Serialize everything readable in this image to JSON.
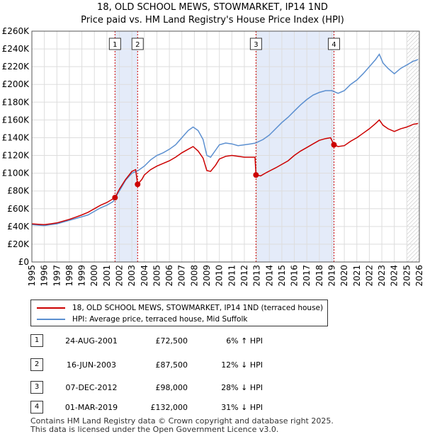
{
  "title_line1": "18, OLD SCHOOL MEWS, STOWMARKET, IP14 1ND",
  "title_line2": "Price paid vs. HM Land Registry's House Price Index (HPI)",
  "chart_data": {
    "type": "line",
    "x_ticks": [
      "1995",
      "1996",
      "1997",
      "1998",
      "1999",
      "2000",
      "2001",
      "2002",
      "2003",
      "2004",
      "2005",
      "2006",
      "2007",
      "2008",
      "2009",
      "2010",
      "2011",
      "2012",
      "2013",
      "2014",
      "2015",
      "2016",
      "2017",
      "2018",
      "2019",
      "2020",
      "2021",
      "2022",
      "2023",
      "2024",
      "2025",
      "2026"
    ],
    "y_ticks": [
      "£0",
      "£20K",
      "£40K",
      "£60K",
      "£80K",
      "£100K",
      "£120K",
      "£140K",
      "£160K",
      "£180K",
      "£200K",
      "£220K",
      "£240K",
      "£260K"
    ],
    "xlim": [
      1995,
      2026
    ],
    "ylim": [
      0,
      260000
    ],
    "highlight_ranges": [
      [
        2001.65,
        2003.46
      ],
      [
        2012.93,
        2019.17
      ]
    ],
    "hatch_from": 2025.0,
    "series": [
      {
        "name": "HPI: Average price, terraced house, Mid Suffolk",
        "color": "#5b8fd0",
        "points": [
          [
            1995.0,
            42000
          ],
          [
            1995.5,
            41500
          ],
          [
            1996.0,
            41000
          ],
          [
            1996.5,
            42000
          ],
          [
            1997.0,
            43000
          ],
          [
            1997.5,
            45000
          ],
          [
            1998.0,
            47000
          ],
          [
            1998.5,
            49000
          ],
          [
            1999.0,
            51000
          ],
          [
            1999.5,
            53000
          ],
          [
            2000.0,
            57000
          ],
          [
            2000.5,
            61000
          ],
          [
            2001.0,
            64000
          ],
          [
            2001.5,
            68000
          ],
          [
            2002.0,
            80000
          ],
          [
            2002.5,
            92000
          ],
          [
            2003.0,
            100000
          ],
          [
            2003.5,
            103000
          ],
          [
            2004.0,
            108000
          ],
          [
            2004.5,
            115000
          ],
          [
            2005.0,
            120000
          ],
          [
            2005.5,
            123000
          ],
          [
            2006.0,
            127000
          ],
          [
            2006.5,
            132000
          ],
          [
            2007.0,
            140000
          ],
          [
            2007.5,
            148000
          ],
          [
            2007.9,
            152000
          ],
          [
            2008.3,
            148000
          ],
          [
            2008.7,
            138000
          ],
          [
            2009.0,
            120000
          ],
          [
            2009.3,
            118000
          ],
          [
            2009.7,
            126000
          ],
          [
            2010.0,
            132000
          ],
          [
            2010.5,
            134000
          ],
          [
            2011.0,
            133000
          ],
          [
            2011.5,
            131000
          ],
          [
            2012.0,
            132000
          ],
          [
            2012.5,
            133000
          ],
          [
            2012.9,
            134000
          ],
          [
            2013.5,
            138000
          ],
          [
            2014.0,
            143000
          ],
          [
            2014.5,
            150000
          ],
          [
            2015.0,
            157000
          ],
          [
            2015.5,
            163000
          ],
          [
            2016.0,
            170000
          ],
          [
            2016.5,
            177000
          ],
          [
            2017.0,
            183000
          ],
          [
            2017.5,
            188000
          ],
          [
            2018.0,
            191000
          ],
          [
            2018.5,
            193000
          ],
          [
            2019.0,
            193000
          ],
          [
            2019.5,
            190000
          ],
          [
            2020.0,
            193000
          ],
          [
            2020.5,
            200000
          ],
          [
            2021.0,
            205000
          ],
          [
            2021.5,
            212000
          ],
          [
            2022.0,
            220000
          ],
          [
            2022.5,
            228000
          ],
          [
            2022.8,
            234000
          ],
          [
            2023.1,
            224000
          ],
          [
            2023.5,
            218000
          ],
          [
            2024.0,
            212000
          ],
          [
            2024.5,
            218000
          ],
          [
            2025.0,
            222000
          ],
          [
            2025.5,
            226000
          ],
          [
            2025.9,
            228000
          ]
        ]
      },
      {
        "name": "18, OLD SCHOOL MEWS, STOWMARKET, IP14 1ND (terraced house)",
        "color": "#cc0000",
        "points": [
          [
            1995.0,
            43000
          ],
          [
            1995.5,
            42500
          ],
          [
            1996.0,
            42000
          ],
          [
            1996.5,
            43000
          ],
          [
            1997.0,
            44000
          ],
          [
            1997.5,
            46000
          ],
          [
            1998.0,
            48000
          ],
          [
            1998.5,
            50500
          ],
          [
            1999.0,
            53000
          ],
          [
            1999.5,
            56000
          ],
          [
            2000.0,
            60000
          ],
          [
            2000.5,
            64000
          ],
          [
            2001.0,
            67000
          ],
          [
            2001.65,
            72500
          ],
          [
            2002.0,
            82000
          ],
          [
            2002.5,
            93000
          ],
          [
            2003.0,
            102000
          ],
          [
            2003.3,
            104000
          ],
          [
            2003.46,
            87500
          ],
          [
            2003.8,
            93000
          ],
          [
            2004.0,
            98000
          ],
          [
            2004.5,
            104000
          ],
          [
            2005.0,
            108000
          ],
          [
            2005.5,
            111000
          ],
          [
            2006.0,
            114000
          ],
          [
            2006.5,
            118000
          ],
          [
            2007.0,
            123000
          ],
          [
            2007.5,
            127000
          ],
          [
            2007.9,
            130000
          ],
          [
            2008.3,
            125000
          ],
          [
            2008.7,
            117000
          ],
          [
            2009.0,
            103000
          ],
          [
            2009.3,
            102000
          ],
          [
            2009.7,
            109000
          ],
          [
            2010.0,
            116000
          ],
          [
            2010.5,
            119000
          ],
          [
            2011.0,
            120000
          ],
          [
            2011.5,
            119000
          ],
          [
            2012.0,
            118000
          ],
          [
            2012.5,
            118000
          ],
          [
            2012.85,
            118000
          ],
          [
            2012.93,
            98000
          ],
          [
            2013.3,
            97000
          ],
          [
            2013.8,
            101000
          ],
          [
            2014.5,
            106000
          ],
          [
            2015.0,
            110000
          ],
          [
            2015.5,
            114000
          ],
          [
            2016.0,
            120000
          ],
          [
            2016.5,
            125000
          ],
          [
            2017.0,
            129000
          ],
          [
            2017.5,
            133000
          ],
          [
            2018.0,
            137000
          ],
          [
            2018.5,
            139000
          ],
          [
            2018.9,
            140000
          ],
          [
            2019.17,
            132000
          ],
          [
            2019.5,
            130000
          ],
          [
            2020.0,
            131000
          ],
          [
            2020.5,
            136000
          ],
          [
            2021.0,
            140000
          ],
          [
            2021.5,
            145000
          ],
          [
            2022.0,
            150000
          ],
          [
            2022.5,
            156000
          ],
          [
            2022.8,
            160000
          ],
          [
            2023.1,
            154000
          ],
          [
            2023.5,
            150000
          ],
          [
            2024.0,
            147000
          ],
          [
            2024.5,
            150000
          ],
          [
            2025.0,
            152000
          ],
          [
            2025.5,
            155000
          ],
          [
            2025.9,
            156000
          ]
        ]
      }
    ],
    "sale_points": [
      [
        2001.65,
        72500
      ],
      [
        2003.46,
        87500
      ],
      [
        2012.93,
        98000
      ],
      [
        2019.17,
        132000
      ]
    ],
    "sale_markers": [
      {
        "label": "1",
        "x": 2001.65
      },
      {
        "label": "2",
        "x": 2003.46
      },
      {
        "label": "3",
        "x": 2012.93
      },
      {
        "label": "4",
        "x": 2019.17
      }
    ]
  },
  "legend": [
    {
      "label": "18, OLD SCHOOL MEWS, STOWMARKET, IP14 1ND (terraced house)",
      "color": "#cc0000"
    },
    {
      "label": "HPI: Average price, terraced house, Mid Suffolk",
      "color": "#5b8fd0"
    }
  ],
  "sales": [
    {
      "num": "1",
      "date": "24-AUG-2001",
      "price": "£72,500",
      "hpi": "6% ↑ HPI"
    },
    {
      "num": "2",
      "date": "16-JUN-2003",
      "price": "£87,500",
      "hpi": "12% ↓ HPI"
    },
    {
      "num": "3",
      "date": "07-DEC-2012",
      "price": "£98,000",
      "hpi": "28% ↓ HPI"
    },
    {
      "num": "4",
      "date": "01-MAR-2019",
      "price": "£132,000",
      "hpi": "31% ↓ HPI"
    }
  ],
  "footer_line1": "Contains HM Land Registry data © Crown copyright and database right 2025.",
  "footer_line2": "This data is licensed under the Open Government Licence v3.0."
}
